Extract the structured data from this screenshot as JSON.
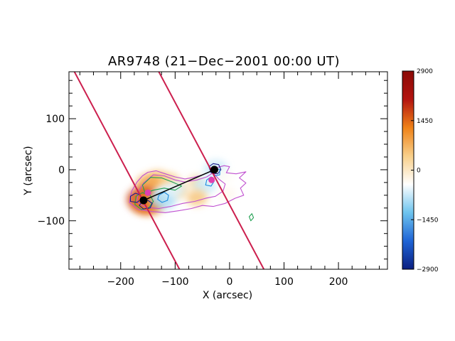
{
  "chart_data": {
    "type": "heatmap",
    "title": "AR9748 (21−Dec−2001 00:00 UT)",
    "xlabel": "X (arcsec)",
    "ylabel": "Y (arcsec)",
    "xlim": [
      -295,
      290
    ],
    "ylim": [
      -195,
      192
    ],
    "xticks": [
      {
        "value": -200,
        "label": "−200"
      },
      {
        "value": -100,
        "label": "−100"
      },
      {
        "value": 0,
        "label": "0"
      },
      {
        "value": 100,
        "label": "100"
      },
      {
        "value": 200,
        "label": "200"
      }
    ],
    "yticks": [
      {
        "value": 100,
        "label": "100"
      },
      {
        "value": 0,
        "label": "0"
      },
      {
        "value": -100,
        "label": "−100"
      }
    ],
    "grid": false,
    "colorbar": {
      "range": [
        -2900,
        2900
      ],
      "ticks": [
        {
          "value": 2900,
          "label": "2900"
        },
        {
          "value": 1450,
          "label": "1450"
        },
        {
          "value": 0,
          "label": "0"
        },
        {
          "value": -1450,
          "label": "−1450"
        },
        {
          "value": -2900,
          "label": "−2900"
        }
      ],
      "colors": [
        "#0b1f80",
        "#1f64d6",
        "#6ec4ee",
        "#ffffff",
        "#f8cf8a",
        "#ef8218",
        "#b31410",
        "#8a0a06"
      ]
    },
    "field_patches": [
      {
        "x": -132,
        "y": -18,
        "value": 600
      },
      {
        "x": -148,
        "y": -28,
        "value": 850
      },
      {
        "x": -110,
        "y": -22,
        "value": 450
      },
      {
        "x": -95,
        "y": -40,
        "value": 400
      },
      {
        "x": -158,
        "y": -58,
        "value": 1700
      },
      {
        "x": -150,
        "y": -66,
        "value": 1300
      },
      {
        "x": -120,
        "y": -48,
        "value": -500
      },
      {
        "x": -122,
        "y": -58,
        "value": -900
      },
      {
        "x": -100,
        "y": -38,
        "value": -600
      },
      {
        "x": -60,
        "y": -25,
        "value": 300
      },
      {
        "x": -45,
        "y": -30,
        "value": -700
      },
      {
        "x": -30,
        "y": -10,
        "value": -500
      },
      {
        "x": -25,
        "y": 2,
        "value": -700
      },
      {
        "x": -10,
        "y": -12,
        "value": -350
      },
      {
        "x": -60,
        "y": -55,
        "value": 500
      },
      {
        "x": -5,
        "y": -48,
        "value": -300
      }
    ],
    "markers": [
      {
        "x": -33,
        "y": -20,
        "color": "#e040b0"
      },
      {
        "x": -150,
        "y": -45,
        "color": "#e040b0"
      },
      {
        "x": -160,
        "y": -60,
        "color": "#e040b0"
      }
    ],
    "footpoints": [
      {
        "x": -158,
        "y": -60
      },
      {
        "x": -28,
        "y": 0
      }
    ],
    "slit_lines": [
      {
        "x1": -285,
        "y1": 192,
        "x2": -92,
        "y2": -195
      },
      {
        "x1": -130,
        "y1": 192,
        "x2": 63,
        "y2": -195
      }
    ],
    "contours": [
      {
        "color": "#c050d0",
        "points": [
          [
            -150,
            -5
          ],
          [
            -135,
            -2
          ],
          [
            -118,
            -8
          ],
          [
            -100,
            -14
          ],
          [
            -82,
            -18
          ],
          [
            -66,
            -15
          ],
          [
            -50,
            -10
          ],
          [
            -36,
            -4
          ],
          [
            -24,
            4
          ],
          [
            -10,
            8
          ],
          [
            0,
            6
          ],
          [
            -6,
            -6
          ],
          [
            12,
            -8
          ],
          [
            30,
            -4
          ],
          [
            18,
            -16
          ],
          [
            30,
            -26
          ],
          [
            20,
            -36
          ],
          [
            26,
            -50
          ],
          [
            10,
            -56
          ],
          [
            -8,
            -66
          ],
          [
            -30,
            -72
          ],
          [
            -50,
            -70
          ],
          [
            -70,
            -76
          ],
          [
            -92,
            -80
          ],
          [
            -118,
            -84
          ],
          [
            -142,
            -82
          ],
          [
            -168,
            -78
          ],
          [
            -184,
            -64
          ],
          [
            -180,
            -42
          ],
          [
            -170,
            -24
          ],
          [
            -160,
            -12
          ]
        ]
      },
      {
        "color": "#c050d0",
        "points": [
          [
            -140,
            -10
          ],
          [
            -120,
            -12
          ],
          [
            -100,
            -20
          ],
          [
            -82,
            -24
          ],
          [
            -60,
            -20
          ],
          [
            -42,
            -14
          ],
          [
            -30,
            -6
          ],
          [
            -20,
            -18
          ],
          [
            -8,
            -28
          ],
          [
            -12,
            -42
          ],
          [
            -26,
            -52
          ],
          [
            -44,
            -56
          ],
          [
            -64,
            -62
          ],
          [
            -86,
            -66
          ],
          [
            -108,
            -72
          ],
          [
            -130,
            -76
          ],
          [
            -152,
            -74
          ],
          [
            -170,
            -64
          ],
          [
            -168,
            -44
          ],
          [
            -158,
            -26
          ]
        ]
      },
      {
        "color": "#22a052",
        "points": [
          [
            -160,
            -30
          ],
          [
            -145,
            -15
          ],
          [
            -125,
            -16
          ],
          [
            -105,
            -24
          ],
          [
            -88,
            -32
          ],
          [
            -100,
            -40
          ],
          [
            -120,
            -36
          ],
          [
            -140,
            -40
          ],
          [
            -155,
            -46
          ]
        ]
      },
      {
        "color": "#22a052",
        "points": [
          [
            -172,
            -52
          ],
          [
            -160,
            -45
          ],
          [
            -146,
            -50
          ],
          [
            -140,
            -62
          ],
          [
            -148,
            -74
          ],
          [
            -162,
            -78
          ],
          [
            -174,
            -68
          ]
        ]
      },
      {
        "color": "#22a052",
        "points": [
          [
            36,
            -92
          ],
          [
            41,
            -86
          ],
          [
            44,
            -94
          ],
          [
            39,
            -100
          ]
        ]
      },
      {
        "color": "#1a1a8a",
        "points": [
          [
            -182,
            -52
          ],
          [
            -173,
            -46
          ],
          [
            -164,
            -49
          ],
          [
            -162,
            -57
          ],
          [
            -170,
            -64
          ],
          [
            -182,
            -62
          ]
        ]
      },
      {
        "color": "#1a1a8a",
        "points": [
          [
            -160,
            -62
          ],
          [
            -150,
            -60
          ],
          [
            -142,
            -66
          ],
          [
            -146,
            -75
          ],
          [
            -158,
            -77
          ],
          [
            -166,
            -70
          ]
        ]
      },
      {
        "color": "#1a1a8a",
        "points": [
          [
            -38,
            6
          ],
          [
            -30,
            12
          ],
          [
            -20,
            10
          ],
          [
            -16,
            0
          ],
          [
            -22,
            -8
          ],
          [
            -34,
            -6
          ]
        ]
      },
      {
        "color": "#1a8adf",
        "points": [
          [
            -130,
            -50
          ],
          [
            -120,
            -44
          ],
          [
            -112,
            -50
          ],
          [
            -114,
            -60
          ],
          [
            -124,
            -64
          ],
          [
            -132,
            -58
          ]
        ]
      },
      {
        "color": "#1a8adf",
        "points": [
          [
            -42,
            -20
          ],
          [
            -34,
            -14
          ],
          [
            -28,
            -22
          ],
          [
            -34,
            -32
          ],
          [
            -44,
            -30
          ]
        ]
      },
      {
        "color": "#1a8adf",
        "points": [
          [
            -32,
            -4
          ],
          [
            -26,
            4
          ],
          [
            -18,
            0
          ],
          [
            -18,
            -10
          ],
          [
            -28,
            -12
          ]
        ]
      }
    ]
  }
}
